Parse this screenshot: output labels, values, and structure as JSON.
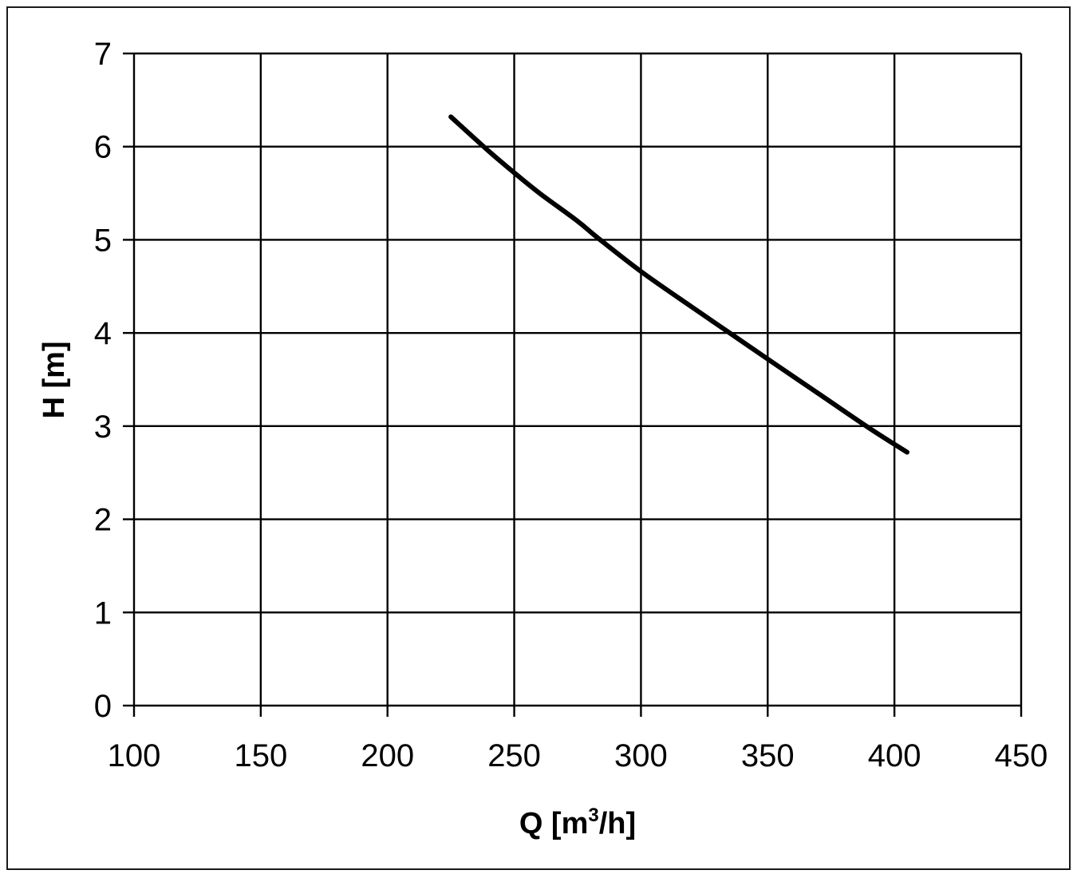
{
  "chart_data": {
    "type": "line",
    "title": "",
    "xlabel": "Q [m³/h]",
    "xlabel_main": "Q [m",
    "xlabel_sup": "3",
    "xlabel_tail": "/h]",
    "ylabel": "H [m]",
    "xlim": [
      100,
      450
    ],
    "ylim": [
      0,
      7
    ],
    "xticks": [
      100,
      150,
      200,
      250,
      300,
      350,
      400,
      450
    ],
    "yticks": [
      0,
      1,
      2,
      3,
      4,
      5,
      6,
      7
    ],
    "grid": true,
    "legend": "none",
    "line_color": "#000000",
    "series": [
      {
        "x": [
          225,
          240,
          250,
          260,
          275,
          283,
          300,
          320,
          335,
          350,
          370,
          390,
          405
        ],
        "y": [
          6.32,
          5.95,
          5.72,
          5.5,
          5.2,
          5.02,
          4.66,
          4.28,
          4.0,
          3.72,
          3.35,
          2.98,
          2.72
        ]
      }
    ]
  }
}
